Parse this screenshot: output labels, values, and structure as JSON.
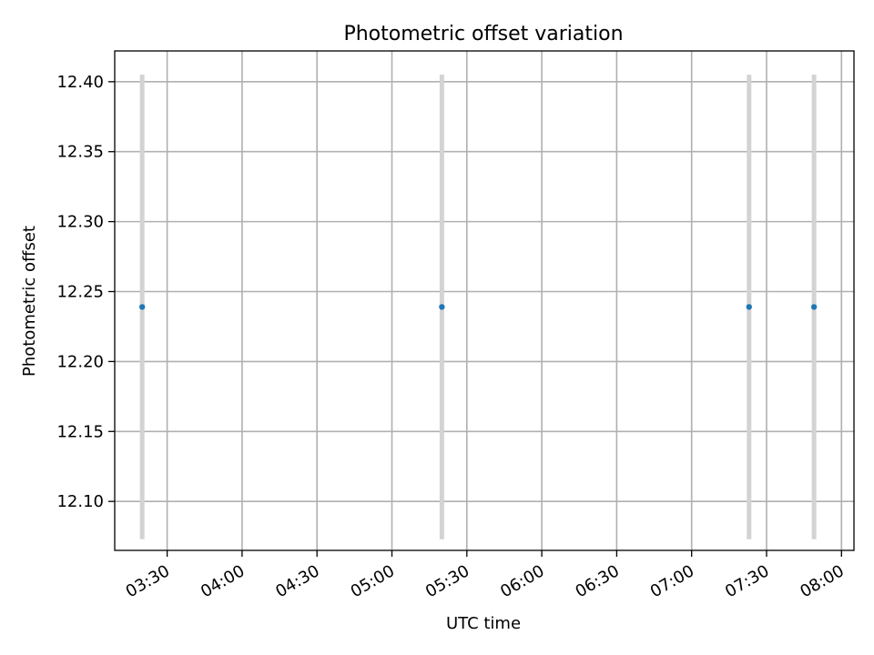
{
  "chart_data": {
    "type": "scatter",
    "title": "Photometric offset variation",
    "xlabel": "UTC time",
    "ylabel": "Photometric offset",
    "x_tick_labels": [
      "03:30",
      "04:00",
      "04:30",
      "05:00",
      "05:30",
      "06:00",
      "06:30",
      "07:00",
      "07:30",
      "08:00"
    ],
    "y_tick_labels": [
      "12.10",
      "12.15",
      "12.20",
      "12.25",
      "12.30",
      "12.35",
      "12.40"
    ],
    "xlim": [
      "03:09",
      "08:05"
    ],
    "ylim": [
      12.065,
      12.422
    ],
    "grid": true,
    "series": [
      {
        "x": [
          "03:20",
          "05:20",
          "07:23",
          "07:49"
        ],
        "y": [
          12.239,
          12.239,
          12.239,
          12.239
        ],
        "yerr": [
          0.166,
          0.166,
          0.166,
          0.166
        ],
        "marker_color": "#1f77b4",
        "errorbar_color": "#d3d3d3"
      }
    ]
  }
}
